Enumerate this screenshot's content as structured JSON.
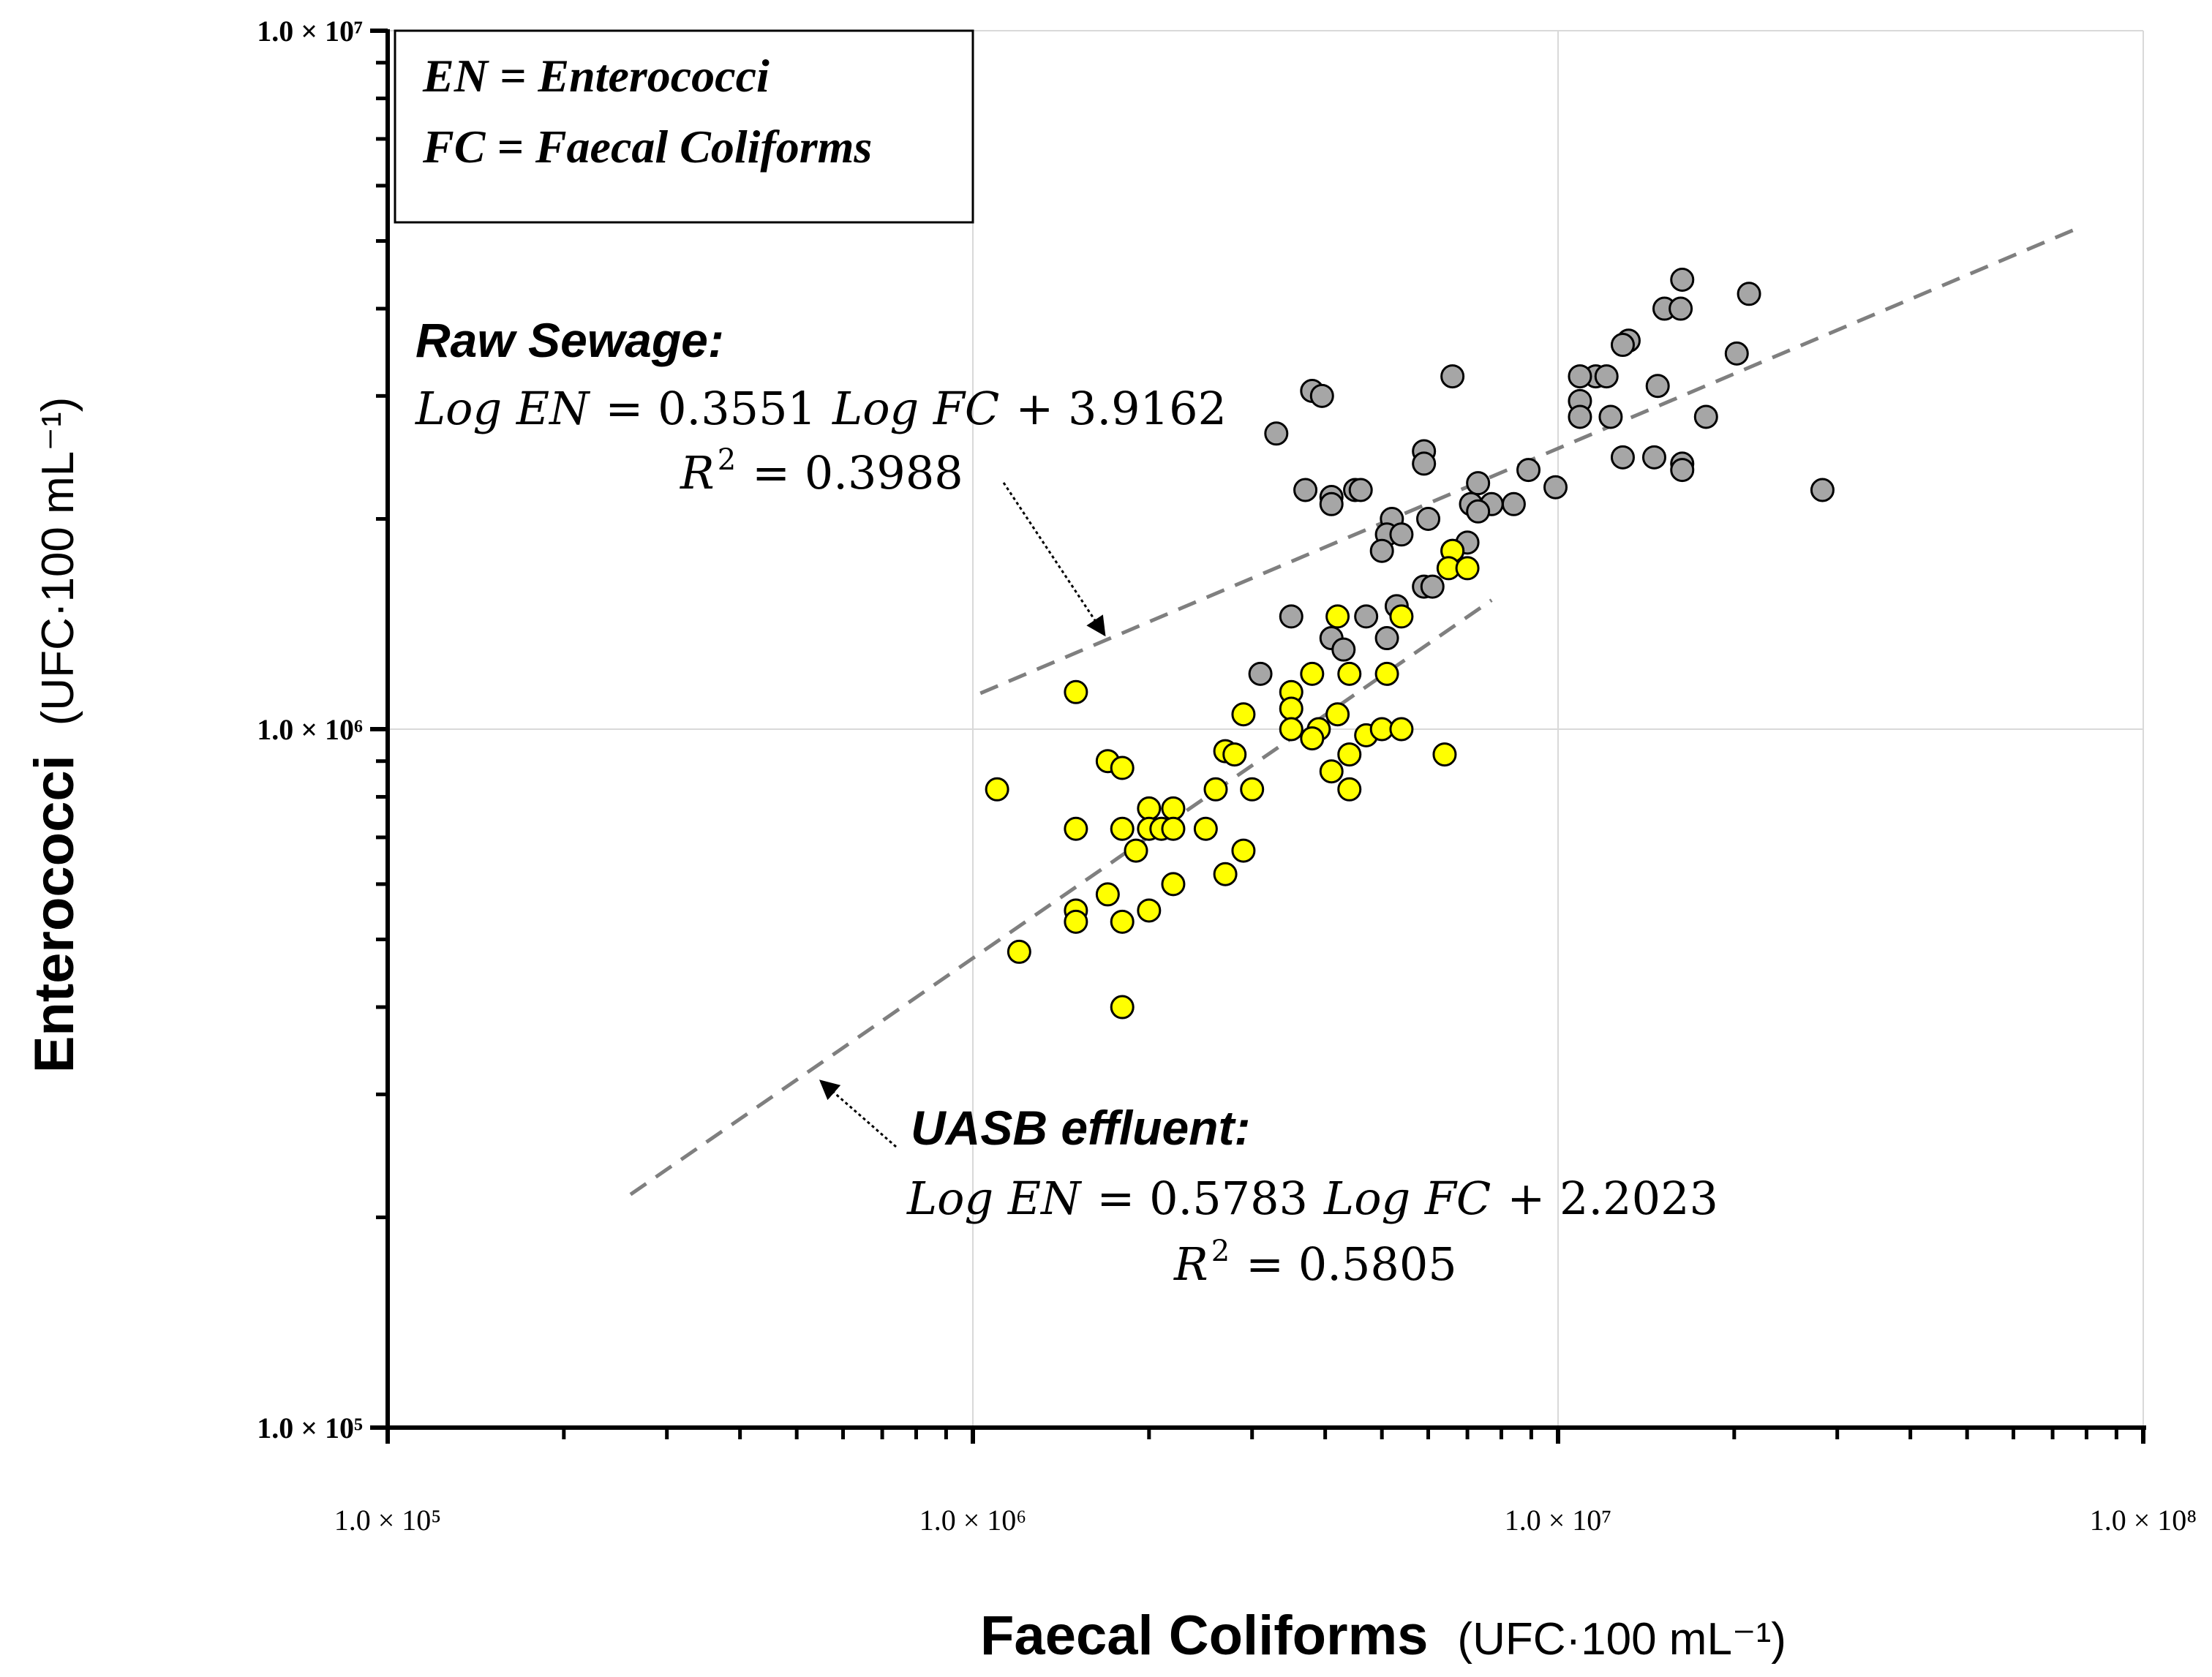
{
  "chart_data": {
    "type": "scatter",
    "xscale": "log",
    "yscale": "log",
    "xlim": [
      100000,
      100000000
    ],
    "ylim": [
      100000,
      10000000
    ],
    "grid": true,
    "xlabel": "Faecal Coliforms",
    "xlabel_unit": "(UFC·100 mL⁻¹)",
    "ylabel": "Enterococci",
    "ylabel_unit": "(UFC·100 mL⁻¹)",
    "x_ticks": [
      "1.0 × 10⁵",
      "1.0 × 10⁶",
      "1.0 × 10⁷",
      "1.0 × 10⁸"
    ],
    "y_ticks": [
      "1.0 × 10⁵",
      "1.0 × 10⁶",
      "1.0 × 10⁷"
    ],
    "legend": {
      "position": "top-left",
      "lines": [
        "EN = Enterococci",
        "FC = Faecal Coliforms"
      ]
    },
    "colors": {
      "raw_fill": "#a6a6a6",
      "uasb_fill": "#ffff00",
      "marker_edge": "#000000",
      "trend_line": "#7f7f7f",
      "grid": "#d9d9d9"
    },
    "series": [
      {
        "name": "Raw Sewage",
        "color": "#a6a6a6",
        "points": [
          [
            16300000,
            4400000
          ],
          [
            21200000,
            4200000
          ],
          [
            15200000,
            4000000
          ],
          [
            16200000,
            4000000
          ],
          [
            13200000,
            3600000
          ],
          [
            12900000,
            3550000
          ],
          [
            20200000,
            3450000
          ],
          [
            11600000,
            3200000
          ],
          [
            10900000,
            3200000
          ],
          [
            12100000,
            3200000
          ],
          [
            6600000,
            3200000
          ],
          [
            14800000,
            3100000
          ],
          [
            3800000,
            3050000
          ],
          [
            3950000,
            3000000
          ],
          [
            10900000,
            2950000
          ],
          [
            10900000,
            2800000
          ],
          [
            12300000,
            2800000
          ],
          [
            17900000,
            2800000
          ],
          [
            3300000,
            2650000
          ],
          [
            5900000,
            2500000
          ],
          [
            12900000,
            2450000
          ],
          [
            14600000,
            2450000
          ],
          [
            5900000,
            2400000
          ],
          [
            16300000,
            2400000
          ],
          [
            16300000,
            2350000
          ],
          [
            8900000,
            2350000
          ],
          [
            7300000,
            2250000
          ],
          [
            9900000,
            2220000
          ],
          [
            28300000,
            2200000
          ],
          [
            3700000,
            2200000
          ],
          [
            4500000,
            2200000
          ],
          [
            4100000,
            2150000
          ],
          [
            4600000,
            2200000
          ],
          [
            7100000,
            2100000
          ],
          [
            7700000,
            2100000
          ],
          [
            8400000,
            2100000
          ],
          [
            7300000,
            2050000
          ],
          [
            4100000,
            2100000
          ],
          [
            5200000,
            2000000
          ],
          [
            6000000,
            2000000
          ],
          [
            5100000,
            1900000
          ],
          [
            5400000,
            1900000
          ],
          [
            7000000,
            1850000
          ],
          [
            5000000,
            1800000
          ],
          [
            6600000,
            1800000
          ],
          [
            5900000,
            1600000
          ],
          [
            6100000,
            1600000
          ],
          [
            5300000,
            1500000
          ],
          [
            3500000,
            1450000
          ],
          [
            4700000,
            1450000
          ],
          [
            4100000,
            1350000
          ],
          [
            5100000,
            1350000
          ],
          [
            4300000,
            1300000
          ],
          [
            3100000,
            1200000
          ]
        ]
      },
      {
        "name": "UASB effluent",
        "color": "#ffff00",
        "points": [
          [
            6600000,
            1800000
          ],
          [
            6500000,
            1700000
          ],
          [
            7000000,
            1700000
          ],
          [
            5400000,
            1450000
          ],
          [
            4200000,
            1450000
          ],
          [
            3800000,
            1200000
          ],
          [
            4400000,
            1200000
          ],
          [
            5100000,
            1200000
          ],
          [
            3500000,
            1130000
          ],
          [
            1500000,
            1130000
          ],
          [
            3500000,
            1070000
          ],
          [
            2900000,
            1050000
          ],
          [
            4200000,
            1050000
          ],
          [
            3500000,
            1000000
          ],
          [
            3900000,
            1000000
          ],
          [
            4700000,
            980000
          ],
          [
            5000000,
            1000000
          ],
          [
            5400000,
            1000000
          ],
          [
            3800000,
            970000
          ],
          [
            2700000,
            930000
          ],
          [
            2800000,
            920000
          ],
          [
            4400000,
            920000
          ],
          [
            6400000,
            920000
          ],
          [
            1700000,
            900000
          ],
          [
            1800000,
            880000
          ],
          [
            4100000,
            870000
          ],
          [
            1100000,
            820000
          ],
          [
            2600000,
            820000
          ],
          [
            3000000,
            820000
          ],
          [
            4400000,
            820000
          ],
          [
            2000000,
            770000
          ],
          [
            2200000,
            770000
          ],
          [
            1500000,
            720000
          ],
          [
            1800000,
            720000
          ],
          [
            2000000,
            720000
          ],
          [
            2100000,
            720000
          ],
          [
            2200000,
            720000
          ],
          [
            2500000,
            720000
          ],
          [
            1900000,
            670000
          ],
          [
            2900000,
            670000
          ],
          [
            2700000,
            620000
          ],
          [
            2200000,
            600000
          ],
          [
            1700000,
            580000
          ],
          [
            1500000,
            550000
          ],
          [
            2000000,
            550000
          ],
          [
            1500000,
            530000
          ],
          [
            1800000,
            530000
          ],
          [
            1200000,
            480000
          ],
          [
            1800000,
            400000
          ]
        ]
      }
    ],
    "trendlines": [
      {
        "name": "Raw Sewage",
        "equation": "Log EN = 0.3551 Log FC + 3.9162",
        "slope": 0.3551,
        "intercept": 3.9162,
        "x_range": [
          1030000,
          76000000
        ]
      },
      {
        "name": "UASB effluent",
        "equation": "Log EN = 0.5783 Log FC + 2.2023",
        "slope": 0.5783,
        "intercept": 2.2023,
        "x_range": [
          260000,
          7700000
        ]
      }
    ],
    "annotations": [
      {
        "name": "raw",
        "heading": "Raw Sewage:",
        "eq_lhs": "Log EN",
        "eq_eq": "= 0.3551",
        "eq_mid": "Log FC",
        "eq_tail": "+ 3.9162",
        "r2_lhs": "R",
        "r2_exp": "2",
        "r2_val": "= 0.3988",
        "arrow_tip": [
          2300000,
          1350000
        ]
      },
      {
        "name": "uasb",
        "heading": "UASB effluent:",
        "eq_lhs": "Log EN",
        "eq_eq": "= 0.5783",
        "eq_mid": "Log FC",
        "eq_tail": "+ 2.2023",
        "r2_lhs": "R",
        "r2_exp": "2",
        "r2_val": "= 0.5805",
        "arrow_tip": [
          530000,
          340000
        ]
      }
    ]
  }
}
